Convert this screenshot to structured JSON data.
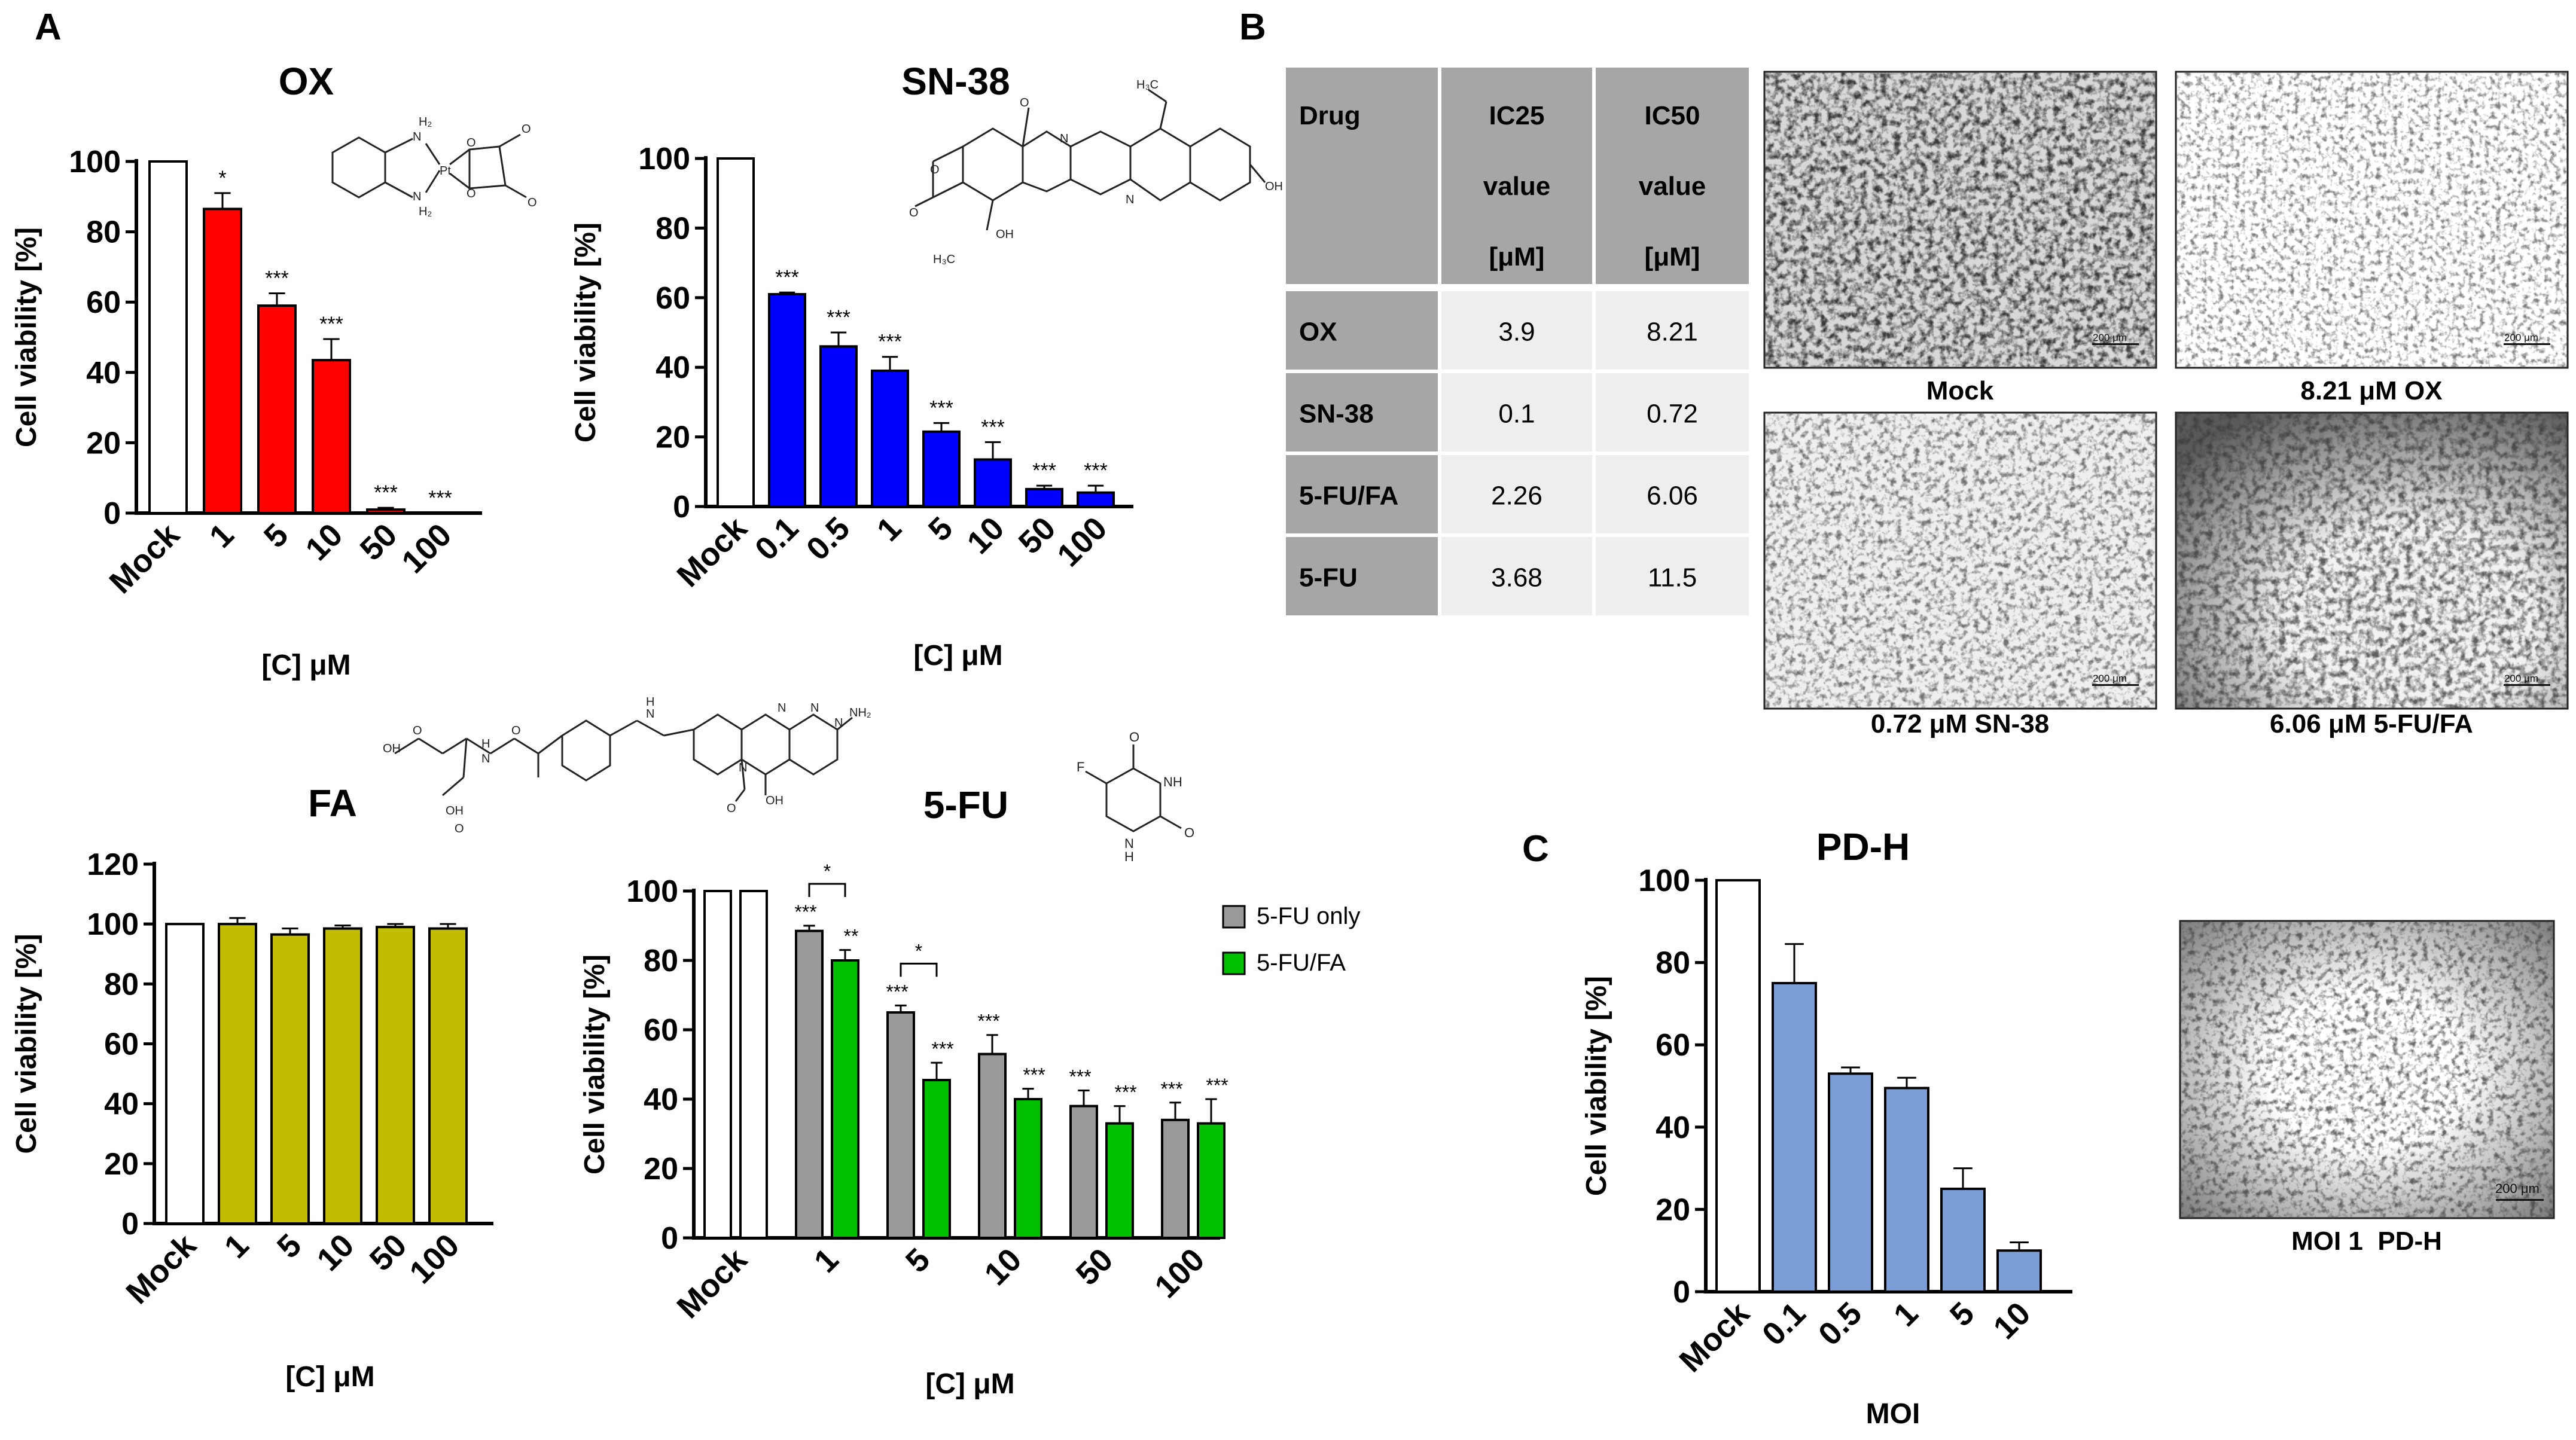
{
  "colors": {
    "ox": "#ff0000",
    "sn38": "#0000ff",
    "fa": "#c2bd00",
    "fu_only": "#999999",
    "fu_fa": "#00c000",
    "pdh": "#7b9ed6",
    "mock": "#ffffff",
    "table_header": "#a6a6a6",
    "table_cell": "#eeeeee"
  },
  "panels": {
    "a": "A",
    "b": "B",
    "c": "C"
  },
  "chart_data": [
    {
      "id": "ox",
      "type": "bar",
      "title": "OX",
      "xlabel": "[C] μM",
      "ylabel": "Cell viability [%]",
      "ylim": [
        0,
        100
      ],
      "yticks": [
        0,
        20,
        40,
        60,
        80,
        100
      ],
      "categories": [
        "Mock",
        "1",
        "5",
        "10",
        "50",
        "100"
      ],
      "values": [
        100,
        86.5,
        59,
        43.5,
        1,
        0
      ],
      "errors": [
        0,
        4.5,
        3.5,
        6,
        0.5,
        0
      ],
      "significance": [
        "",
        "*",
        "***",
        "***",
        "***",
        "***"
      ]
    },
    {
      "id": "sn38",
      "type": "bar",
      "title": "SN-38",
      "xlabel": "[C] μM",
      "ylabel": "Cell viability [%]",
      "ylim": [
        0,
        100
      ],
      "yticks": [
        0,
        20,
        40,
        60,
        80,
        100
      ],
      "categories": [
        "Mock",
        "0.1",
        "0.5",
        "1",
        "5",
        "10",
        "50",
        "100"
      ],
      "values": [
        100,
        61,
        46,
        39,
        21.5,
        13.5,
        5,
        4
      ],
      "errors": [
        0,
        0.5,
        4,
        4,
        2.5,
        5,
        1,
        2
      ],
      "significance": [
        "",
        "***",
        "***",
        "***",
        "***",
        "***",
        "***",
        "***"
      ]
    },
    {
      "id": "fa",
      "type": "bar",
      "title": "FA",
      "xlabel": "[C] μM",
      "ylabel": "Cell viability [%]",
      "ylim": [
        0,
        120
      ],
      "yticks": [
        0,
        20,
        40,
        60,
        80,
        100,
        120
      ],
      "categories": [
        "Mock",
        "1",
        "5",
        "10",
        "50",
        "100"
      ],
      "values": [
        100,
        100,
        96.5,
        98.5,
        99,
        98.5
      ],
      "errors": [
        0,
        2,
        2,
        1,
        1,
        1.5
      ]
    },
    {
      "id": "fu",
      "type": "bar",
      "title": "5-FU",
      "xlabel": "[C] μM",
      "ylabel": "Cell viability [%]",
      "ylim": [
        0,
        100
      ],
      "yticks": [
        0,
        20,
        40,
        60,
        80,
        100
      ],
      "categories": [
        "Mock",
        "1",
        "5",
        "10",
        "50",
        "100"
      ],
      "legend_position": "top-right",
      "series": [
        {
          "name": "5-FU only",
          "values": [
            100,
            88.5,
            65,
            53,
            38,
            34
          ],
          "errors": [
            0,
            1.5,
            2,
            5.5,
            4.5,
            5
          ],
          "significance": [
            "",
            "***",
            "***",
            "***",
            "***",
            "***"
          ]
        },
        {
          "name": "5-FU/FA",
          "values": [
            100,
            80,
            45.5,
            40,
            33,
            33
          ],
          "errors": [
            0,
            3,
            5,
            3,
            5,
            7
          ],
          "significance": [
            "",
            "**",
            "***",
            "***",
            "***",
            "***"
          ]
        }
      ],
      "comparison_labels": [
        "*",
        "*"
      ]
    },
    {
      "id": "pdh",
      "type": "bar",
      "title": "PD-H",
      "xlabel": "MOI",
      "ylabel": "Cell viability [%]",
      "ylim": [
        0,
        100
      ],
      "yticks": [
        0,
        20,
        40,
        60,
        80,
        100
      ],
      "categories": [
        "Mock",
        "0.1",
        "0.5",
        "1",
        "5",
        "10"
      ],
      "values": [
        100,
        75,
        53,
        49.5,
        25,
        10
      ],
      "errors": [
        0,
        9.5,
        1.5,
        2.5,
        5,
        2
      ]
    },
    {
      "id": "ic_table",
      "type": "table",
      "columns": [
        [
          "Drug"
        ],
        [
          "IC25",
          "value",
          "[μM]"
        ],
        [
          "IC50",
          "value",
          "[μM]"
        ]
      ],
      "rows": [
        [
          "OX",
          "3.9",
          "8.21"
        ],
        [
          "SN-38",
          "0.1",
          "0.72"
        ],
        [
          "5-FU/FA",
          "2.26",
          "6.06"
        ],
        [
          "5-FU",
          "3.68",
          "11.5"
        ]
      ]
    }
  ],
  "micrographs": [
    {
      "caption": "Mock",
      "scale": "200 μm"
    },
    {
      "caption": "8.21 μM OX",
      "scale": "200 μm"
    },
    {
      "caption": "0.72 μM SN-38",
      "scale": "200 μm"
    },
    {
      "caption": "6.06 μM 5-FU/FA",
      "scale": "200 μm"
    },
    {
      "caption": "MOI 1  PD-H",
      "scale": "200 μm"
    }
  ]
}
